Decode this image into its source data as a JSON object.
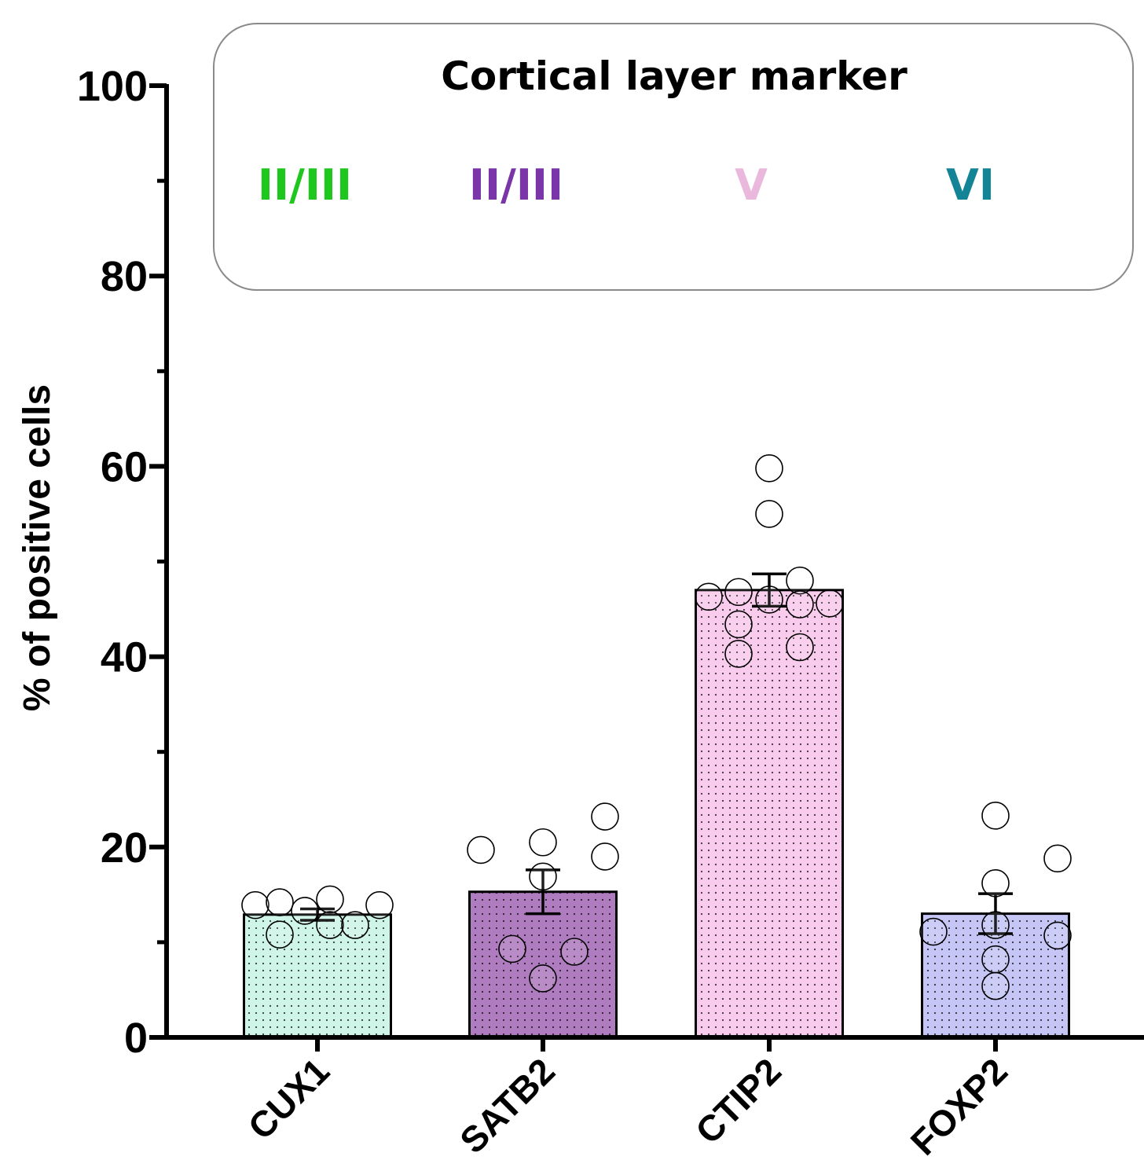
{
  "chart_data": {
    "type": "bar",
    "ylabel": "% of positive cells",
    "xlabel": "",
    "ylim": [
      0,
      100
    ],
    "yticks": [
      0,
      20,
      40,
      60,
      80,
      100
    ],
    "categories": [
      "CUX1",
      "SATB2",
      "CTIP2",
      "FOXP2"
    ],
    "values": [
      12.9,
      15.3,
      47.0,
      13.0
    ],
    "errors": [
      0.6,
      2.3,
      1.7,
      2.1
    ],
    "bar_colors": [
      "#cff5e8",
      "#b07cc0",
      "#f9cbed",
      "#c5c6f5"
    ],
    "points": [
      [
        13.9,
        14.2,
        13.3,
        14.5,
        13.9,
        10.8,
        11.8,
        11.8
      ],
      [
        19.7,
        20.5,
        16.9,
        23.2,
        19.0,
        9.3,
        6.2,
        9.0
      ],
      [
        46.3,
        46.8,
        46.0,
        48.0,
        45.6,
        45.5,
        43.4,
        40.3,
        41.0,
        55.0,
        59.8
      ],
      [
        23.3,
        16.2,
        18.8,
        11.1,
        11.8,
        10.7,
        8.2,
        5.4
      ]
    ],
    "legend": {
      "title": "Cortical layer marker",
      "position": "top",
      "entries": [
        {
          "label": "II/III",
          "color": "#1ec71e"
        },
        {
          "label": "II/III",
          "color": "#7a35a8"
        },
        {
          "label": "V",
          "color": "#e9b8dc"
        },
        {
          "label": "VI",
          "color": "#138496"
        }
      ]
    },
    "grid": false
  }
}
